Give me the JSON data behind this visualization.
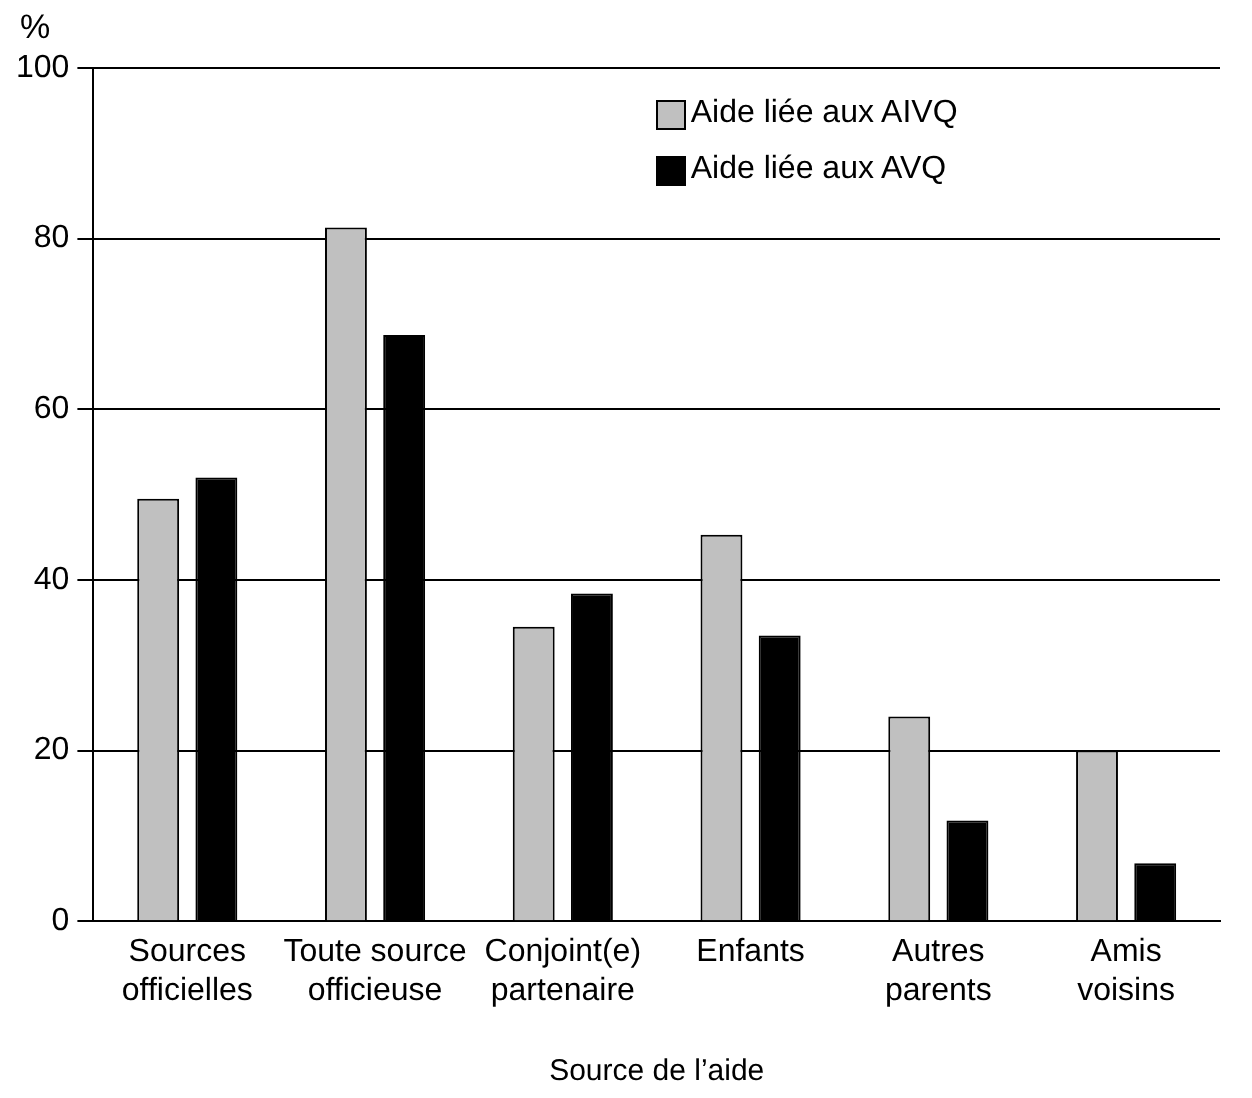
{
  "chart_data": {
    "type": "bar",
    "ylabel": "%",
    "xlabel": "Source de l’aide",
    "categories": [
      "Sources officielles",
      "Toute source officieuse",
      "Conjoint(e) partenaire",
      "Enfants",
      "Autres parents",
      "Amis voisins"
    ],
    "series": [
      {
        "name": "Aide liée aux AIVQ",
        "color": "#c0c0c0",
        "values": [
          49.5,
          81.3,
          34.5,
          45.3,
          24,
          20
        ]
      },
      {
        "name": "Aide liée aux AVQ",
        "color": "#000000",
        "values": [
          52,
          68.7,
          38.4,
          33.5,
          11.8,
          6.8
        ]
      }
    ],
    "ylim": [
      0,
      100
    ],
    "yticks": [
      0,
      20,
      40,
      60,
      80,
      100
    ],
    "grid": "y",
    "legend": "top right"
  }
}
